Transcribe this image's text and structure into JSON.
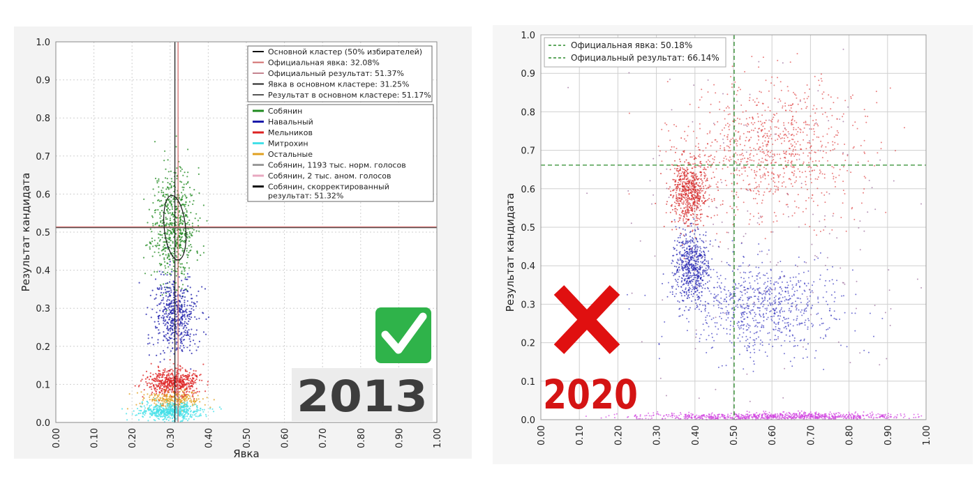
{
  "chart_data": [
    {
      "type": "scatter",
      "xlabel": "Явка",
      "ylabel": "Результат кандидата",
      "xlim": [
        0,
        1
      ],
      "ylim": [
        0,
        1
      ],
      "xticks": [
        "0.00",
        "0.10",
        "0.20",
        "0.30",
        "0.40",
        "0.50",
        "0.60",
        "0.70",
        "0.80",
        "0.90",
        "1.00"
      ],
      "yticks": [
        "0.0",
        "0.1",
        "0.2",
        "0.3",
        "0.4",
        "0.5",
        "0.6",
        "0.7",
        "0.8",
        "0.9",
        "1.0"
      ],
      "grid": true,
      "legend_placement": "top-right",
      "reference_lines": [
        {
          "axis": "x",
          "value": 0.3208,
          "color": "#d06b6b"
        },
        {
          "axis": "x",
          "value": 0.3125,
          "color": "#222222"
        },
        {
          "axis": "y",
          "value": 0.5137,
          "color": "#d06b6b"
        },
        {
          "axis": "y",
          "value": 0.5117,
          "color": "#555555"
        }
      ],
      "cluster_ellipse": {
        "cx": 0.3125,
        "cy": 0.5117,
        "rx": 0.028,
        "ry": 0.085,
        "color": "#111111"
      },
      "legend_lines": [
        {
          "label": "Основной кластер (50% избирателей)",
          "color": "#111111"
        },
        {
          "label": "Официальная явка: 32.08%",
          "color": "#d06b6b"
        },
        {
          "label": "Официальный результат: 51.37%",
          "color": "#c4838f"
        },
        {
          "label": "Явка в основном кластере: 31.25%",
          "color": "#222222"
        },
        {
          "label": "Результат в основном кластере: 51.17%",
          "color": "#555555"
        }
      ],
      "legend_series": [
        {
          "label": "Собянин",
          "color": "#1f8a1f"
        },
        {
          "label": "Навальный",
          "color": "#1a1aaa"
        },
        {
          "label": "Мельников",
          "color": "#dd2222"
        },
        {
          "label": "Митрохин",
          "color": "#44e0e8"
        },
        {
          "label": "Остальные",
          "color": "#e0a020"
        },
        {
          "label": "Собянин, 1193 тыс. норм. голосов",
          "color": "#9a9a9a"
        },
        {
          "label": "Собянин, 2 тыс. аном. голосов",
          "color": "#e8a8c0"
        },
        {
          "label": "Собянин, скорректированный",
          "label2": "результат: 51.32%",
          "color": "#111111"
        }
      ],
      "series": [
        {
          "name": "Собянин",
          "color": "#1f8a1f",
          "center": [
            0.31,
            0.52
          ],
          "spread": [
            0.028,
            0.075
          ],
          "n": 650
        },
        {
          "name": "Навальный",
          "color": "#1a1aaa",
          "center": [
            0.315,
            0.28
          ],
          "spread": [
            0.028,
            0.055
          ],
          "n": 500
        },
        {
          "name": "Мельников",
          "color": "#dd2222",
          "center": [
            0.31,
            0.105
          ],
          "spread": [
            0.035,
            0.018
          ],
          "n": 550
        },
        {
          "name": "Остальные",
          "color": "#e0a020",
          "center": [
            0.31,
            0.06
          ],
          "spread": [
            0.04,
            0.012
          ],
          "n": 250
        },
        {
          "name": "Митрохин",
          "color": "#44e0e8",
          "center": [
            0.3,
            0.03
          ],
          "spread": [
            0.04,
            0.011
          ],
          "n": 550
        }
      ],
      "badge": {
        "text": "2013",
        "check_color": "#2fb34a"
      }
    },
    {
      "type": "scatter",
      "xlabel": "",
      "ylabel": "Результат кандидата",
      "xlim": [
        0,
        1
      ],
      "ylim": [
        0,
        1
      ],
      "xticks": [
        "0.00",
        "0.10",
        "0.20",
        "0.30",
        "0.40",
        "0.50",
        "0.60",
        "0.70",
        "0.80",
        "0.90",
        "1.00"
      ],
      "yticks": [
        "0.0",
        "0.1",
        "0.2",
        "0.3",
        "0.4",
        "0.5",
        "0.6",
        "0.7",
        "0.8",
        "0.9",
        "1.0"
      ],
      "grid": true,
      "legend_placement": "top-left",
      "reference_lines": [
        {
          "axis": "x",
          "value": 0.5018,
          "color": "#2a8a2a",
          "dashed": true
        },
        {
          "axis": "y",
          "value": 0.6614,
          "color": "#2a8a2a",
          "dashed": true
        }
      ],
      "legend_lines": [
        {
          "label": "Официальная явка: 50.18%",
          "color": "#2a8a2a"
        },
        {
          "label": "Официальный результат: 66.14%",
          "color": "#2a8a2a"
        }
      ],
      "series": [
        {
          "name": "red-cluster",
          "color": "#d42020",
          "center": [
            0.385,
            0.59
          ],
          "spread": [
            0.025,
            0.045
          ],
          "n": 650
        },
        {
          "name": "red-diffuse",
          "color": "#e04848",
          "center": [
            0.6,
            0.7
          ],
          "spread": [
            0.11,
            0.09
          ],
          "n": 900
        },
        {
          "name": "blue-cluster",
          "color": "#2020b0",
          "center": [
            0.39,
            0.4
          ],
          "spread": [
            0.024,
            0.045
          ],
          "n": 600
        },
        {
          "name": "blue-diffuse",
          "color": "#3a3ac0",
          "center": [
            0.58,
            0.29
          ],
          "spread": [
            0.1,
            0.06
          ],
          "n": 800
        },
        {
          "name": "magenta-floor",
          "color": "#d040e0",
          "center": [
            0.62,
            0.008
          ],
          "spread": [
            0.18,
            0.005
          ],
          "n": 900
        },
        {
          "name": "sparse",
          "color": "#9a6a9a",
          "center": [
            0.6,
            0.5
          ],
          "spread": [
            0.2,
            0.22
          ],
          "n": 180
        }
      ],
      "badge": {
        "text": "2020",
        "cross_color": "#e01010"
      }
    }
  ]
}
